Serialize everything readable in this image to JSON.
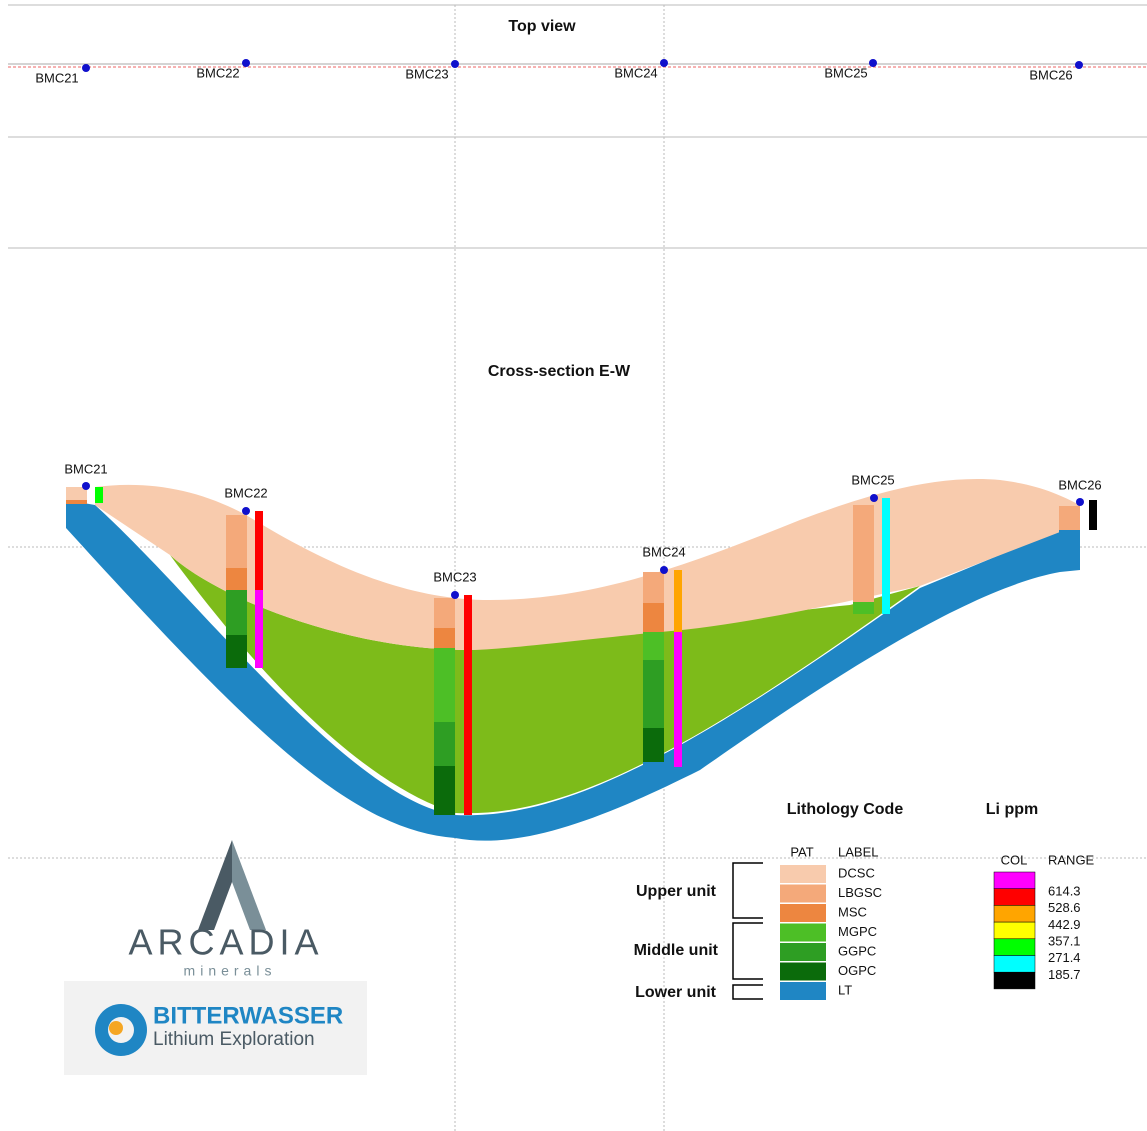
{
  "top_view": {
    "title": "Top view",
    "holes": [
      "BMC21",
      "BMC22",
      "BMC23",
      "BMC24",
      "BMC25",
      "BMC26"
    ]
  },
  "cross_section": {
    "title": "Cross-section E-W",
    "holes": [
      "BMC21",
      "BMC22",
      "BMC23",
      "BMC24",
      "BMC25",
      "BMC26"
    ]
  },
  "lithology_legend": {
    "title": "Lithology Code",
    "headers": [
      "PAT",
      "LABEL"
    ],
    "items": [
      {
        "label": "DCSC",
        "color": "#f8cbad"
      },
      {
        "label": "LBGSC",
        "color": "#f4a97a"
      },
      {
        "label": "MSC",
        "color": "#ed8640"
      },
      {
        "label": "MGPC",
        "color": "#4dbf26"
      },
      {
        "label": "GGPC",
        "color": "#2e9e23"
      },
      {
        "label": "OGPC",
        "color": "#0b6b0b"
      },
      {
        "label": "LT",
        "color": "#1f86c4"
      }
    ],
    "units": [
      "Upper unit",
      "Middle unit",
      "Lower unit"
    ]
  },
  "li_legend": {
    "title": "Li ppm",
    "headers": [
      "COL",
      "RANGE"
    ],
    "colors": [
      "#ff00ff",
      "#ff0000",
      "#ffa500",
      "#ffff00",
      "#00ff00",
      "#00ffff",
      "#000000"
    ],
    "ranges": [
      614.3,
      528.6,
      442.9,
      357.1,
      271.4,
      185.7
    ]
  },
  "logos": {
    "arcadia": "ARCADIA",
    "arcadia_sub": "minerals",
    "bitterwasser": "BITTERWASSER",
    "bitterwasser_sub": "Lithium Exploration"
  }
}
